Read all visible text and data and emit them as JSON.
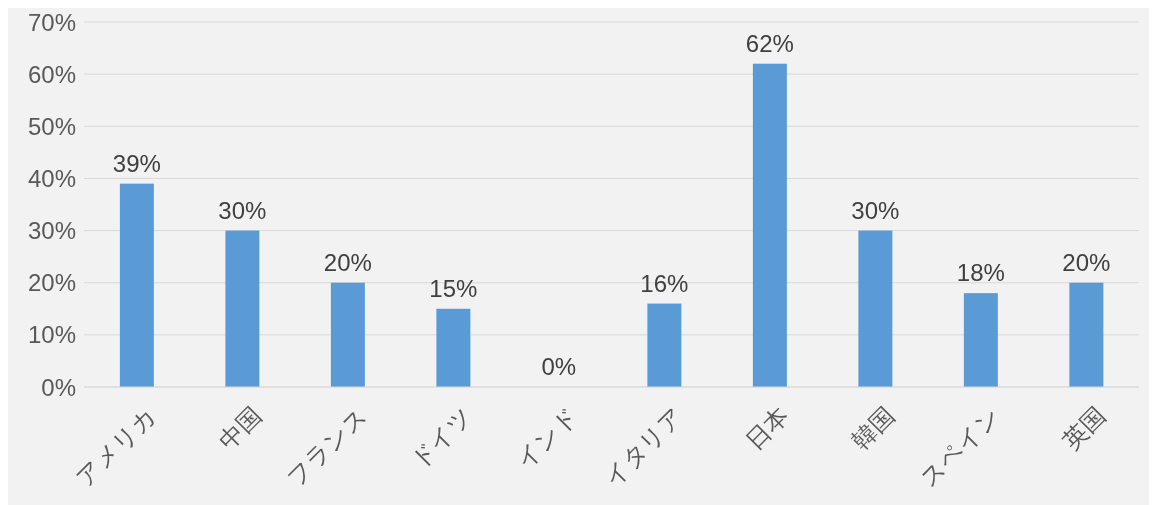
{
  "chart_data": {
    "type": "bar",
    "categories": [
      "アメリカ",
      "中国",
      "フランス",
      "ドイツ",
      "インド",
      "イタリア",
      "日本",
      "韓国",
      "スペイン",
      "英国"
    ],
    "values": [
      39,
      30,
      20,
      15,
      0,
      16,
      62,
      30,
      18,
      20
    ],
    "value_labels": [
      "39%",
      "30%",
      "20%",
      "15%",
      "0%",
      "16%",
      "62%",
      "30%",
      "18%",
      "20%"
    ],
    "color": "#5b9bd5",
    "ylim": [
      0,
      70
    ],
    "yticks": [
      {
        "value": 0,
        "label": "0%"
      },
      {
        "value": 10,
        "label": "10%"
      },
      {
        "value": 20,
        "label": "20%"
      },
      {
        "value": 30,
        "label": "30%"
      },
      {
        "value": 40,
        "label": "40%"
      },
      {
        "value": 50,
        "label": "50%"
      },
      {
        "value": 60,
        "label": "60%"
      },
      {
        "value": 70,
        "label": "70%"
      }
    ],
    "grid": "y"
  }
}
